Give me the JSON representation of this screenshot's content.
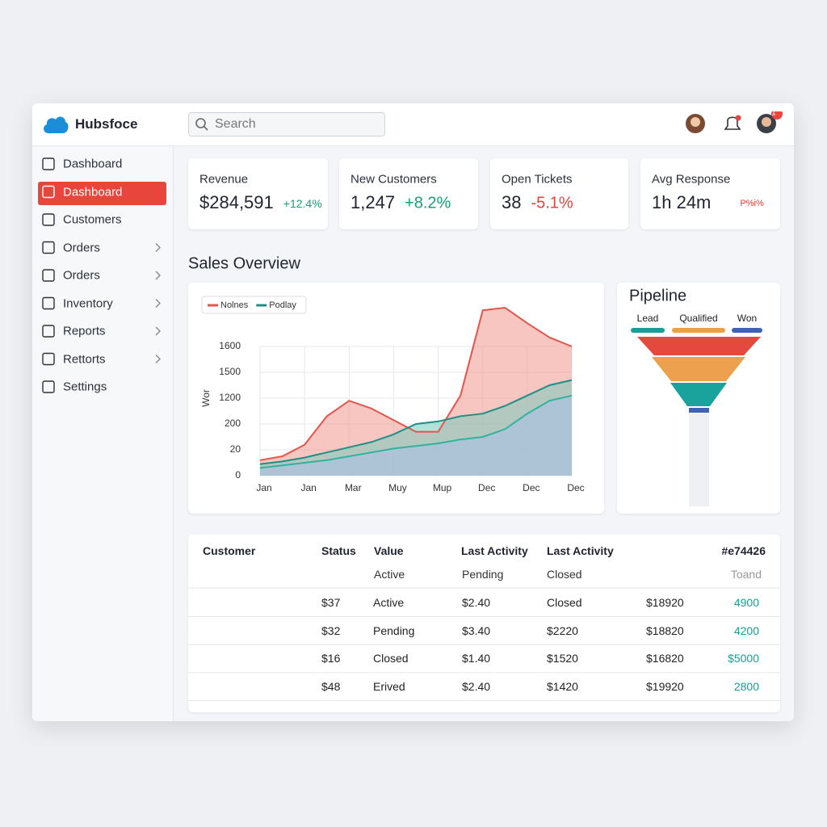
{
  "header": {
    "brand": "Hubsfoce",
    "search_placeholder": "Search",
    "notification_badge": "1"
  },
  "sidebar": {
    "items": [
      {
        "label": "Dashboard"
      },
      {
        "label": "Dashboard",
        "active": true
      },
      {
        "label": "Customers"
      },
      {
        "label": "Orders",
        "chevron": true
      },
      {
        "label": "Orders",
        "chevron": true
      },
      {
        "label": "Inventory",
        "chevron": true
      },
      {
        "label": "Reports",
        "chevron": true
      },
      {
        "label": "Rettorts",
        "chevron": true
      },
      {
        "label": "Settings"
      }
    ]
  },
  "kpis": [
    {
      "label": "Revenue",
      "value": "$284,591",
      "change": "+12.4%",
      "trend": "up"
    },
    {
      "label": "New Customers",
      "value": "1,247",
      "change": "+8.2%",
      "trend": "up"
    },
    {
      "label": "Open Tickets",
      "value": "38",
      "change": "-5.1%",
      "trend": "down"
    },
    {
      "label": "Avg Response",
      "value": "1h 24m",
      "change": "P%i%",
      "trend": "down"
    }
  ],
  "section_title": "Sales Overview",
  "sales_chart": {
    "type": "area",
    "y_label": "Wor",
    "ytick_labels": [
      "0",
      "20",
      "200",
      "1200",
      "1500",
      "1600"
    ],
    "ylim": [
      0,
      7
    ],
    "categories": [
      "Jan",
      "Jan",
      "Mar",
      "Muy",
      "Mup",
      "Dec",
      "Dec",
      "Dec"
    ],
    "x": [
      0,
      0.5,
      1,
      1.5,
      2,
      2.5,
      3,
      3.5,
      4,
      4.5,
      5,
      5.5,
      6,
      6.5,
      7
    ],
    "grid": true,
    "series": [
      {
        "name": "Nolnes",
        "color": "#e0574c",
        "fill": "#f2a097",
        "values": [
          0.6,
          0.75,
          1.2,
          2.3,
          2.9,
          2.6,
          2.15,
          1.7,
          1.7,
          3.1,
          6.4,
          6.5,
          5.9,
          5.35,
          5.0
        ]
      },
      {
        "name": "Podlay",
        "color": "#1f8f86",
        "fill": "#86cbbf",
        "values": [
          0.45,
          0.55,
          0.7,
          0.9,
          1.1,
          1.3,
          1.6,
          2.0,
          2.1,
          2.3,
          2.4,
          2.7,
          3.1,
          3.5,
          3.7
        ]
      },
      {
        "color": "#2fb39a",
        "fill": "#a6c2e2",
        "values": [
          0.3,
          0.4,
          0.5,
          0.6,
          0.75,
          0.9,
          1.05,
          1.15,
          1.25,
          1.4,
          1.5,
          1.8,
          2.4,
          2.9,
          3.1
        ]
      }
    ]
  },
  "pipeline": {
    "title": "Pipeline",
    "stages": [
      {
        "label": "Lead",
        "color": "#1a9e9a"
      },
      {
        "label": "Qualified",
        "color": "#e9a04a"
      },
      {
        "label": "Won",
        "color": "#3e63b5"
      }
    ]
  },
  "table": {
    "header": [
      "Customer",
      "Status",
      "Value",
      "Last Activity",
      "Last Activity",
      "#e74426"
    ],
    "subheader": [
      "Active",
      "Pending",
      "Closed",
      "Toand"
    ],
    "rows": [
      [
        "$37",
        "Active",
        "$2.40",
        "Closed",
        "$18920",
        "4900"
      ],
      [
        "$32",
        "Pending",
        "$3.40",
        "$2220",
        "$18820",
        "4200"
      ],
      [
        "$16",
        "Closed",
        "$1.40",
        "$1520",
        "$16820",
        "$5000"
      ],
      [
        "$48",
        "Erived",
        "$2.40",
        "$1420",
        "$19920",
        "2800"
      ]
    ]
  }
}
